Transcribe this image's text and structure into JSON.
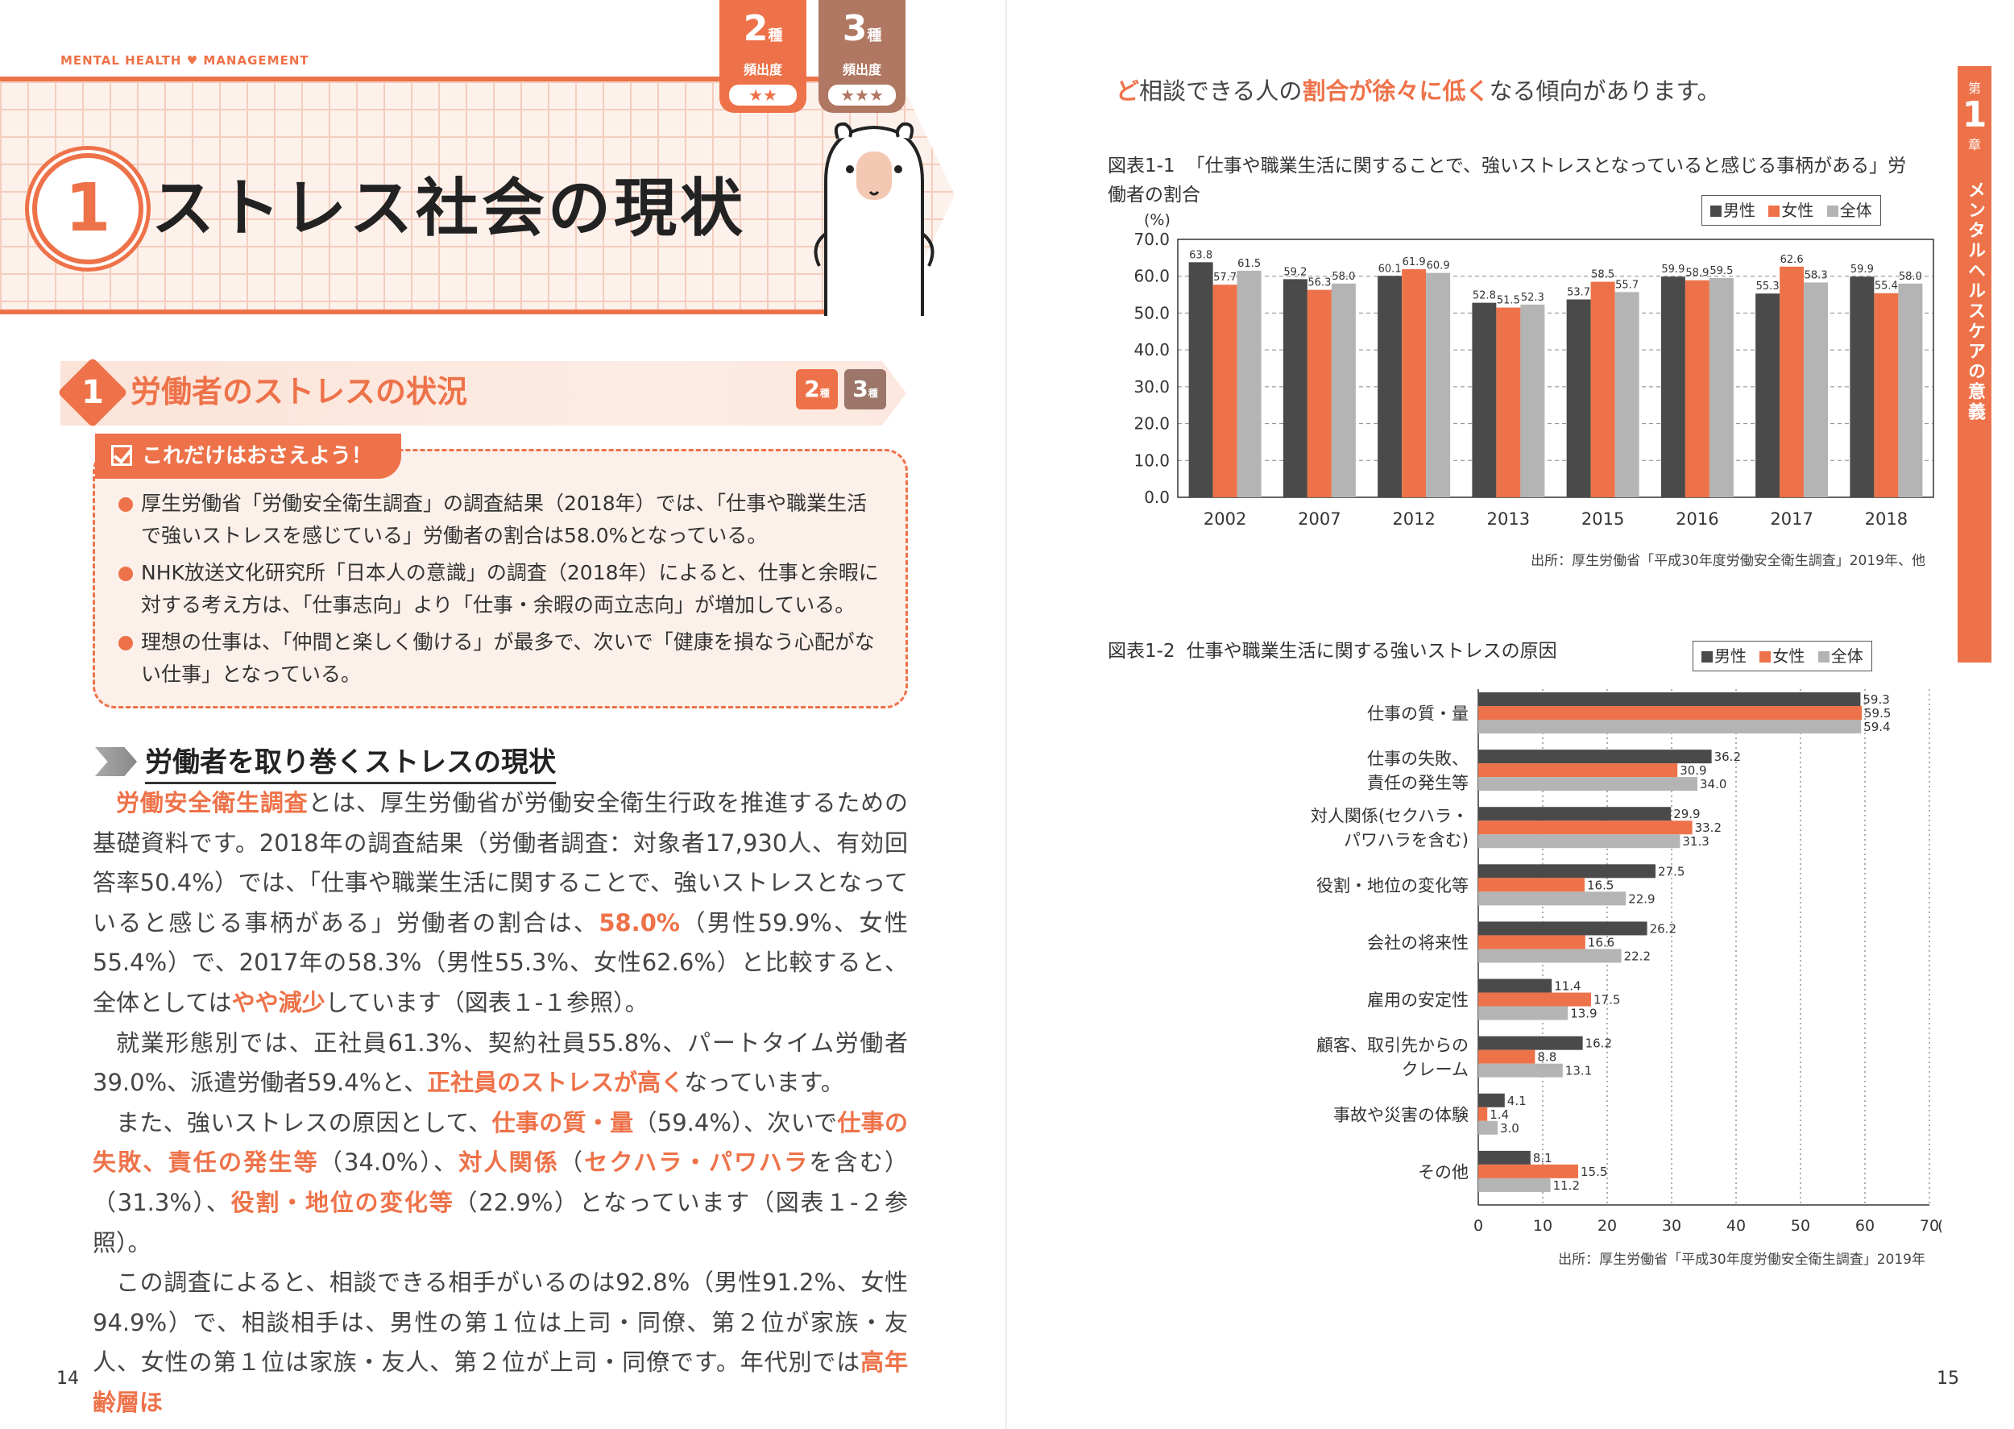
{
  "left": {
    "header_label_left": "MENTAL HEALTH",
    "header_label_heart": "♥",
    "header_label_right": "MANAGEMENT",
    "tabs": [
      {
        "num": "2",
        "suffix": "種",
        "freq": "頻出度",
        "stars": "★★"
      },
      {
        "num": "3",
        "suffix": "種",
        "freq": "頻出度",
        "stars": "★★★"
      }
    ],
    "chapter_num": "1",
    "chapter_title": "ストレス社会の現状",
    "section_num": "1",
    "section_title": "労働者のストレスの状況",
    "mini_tabs": [
      {
        "num": "2",
        "suffix": "種"
      },
      {
        "num": "3",
        "suffix": "種"
      }
    ],
    "key_title": "これだけはおさえよう！",
    "key_points": [
      "厚生労働省「労働安全衛生調査」の調査結果（2018年）では、「仕事や職業生活で強いストレスを感じている」労働者の割合は58.0%となっている。",
      "NHK放送文化研究所「日本人の意識」の調査（2018年）によると、仕事と余暇に対する考え方は、「仕事志向」より「仕事・余暇の両立志向」が増加している。",
      "理想の仕事は、「仲間と楽しく働ける」が最多で、次いで「健康を損なう心配がない仕事」となっている。"
    ],
    "subheading": "労働者を取り巻くストレスの現状",
    "para1": [
      {
        "t": "労働安全衛生調査",
        "hl": true
      },
      {
        "t": "とは、厚生労働省が労働安全衛生行政を推進するための基礎資料です。2018年の調査結果（労働者調査：対象者17,930人、有効回答率50.4%）では、「仕事や職業生活に関することで、強いストレスとなっていると感じる事柄がある」労働者の割合は、",
        "hl": false
      },
      {
        "t": "58.0%",
        "hl": true
      },
      {
        "t": "（男性59.9%、女性55.4%）で、2017年の58.3%（男性55.3%、女性62.6%）と比較すると、全体としては",
        "hl": false
      },
      {
        "t": "やや減少",
        "hl": true
      },
      {
        "t": "しています（図表１-１参照）。",
        "hl": false
      }
    ],
    "para2": [
      {
        "t": "就業形態別では、正社員61.3%、契約社員55.8%、パートタイム労働者39.0%、派遣労働者59.4%と、",
        "hl": false
      },
      {
        "t": "正社員のストレスが高く",
        "hl": true
      },
      {
        "t": "なっています。",
        "hl": false
      }
    ],
    "para3": [
      {
        "t": "また、強いストレスの原因として、",
        "hl": false
      },
      {
        "t": "仕事の質・量",
        "hl": true
      },
      {
        "t": "（59.4%）、次いで",
        "hl": false
      },
      {
        "t": "仕事の失敗、責任の発生等",
        "hl": true
      },
      {
        "t": "（34.0%）、",
        "hl": false
      },
      {
        "t": "対人関係",
        "hl": true
      },
      {
        "t": "（",
        "hl": false
      },
      {
        "t": "セクハラ・パワハラ",
        "hl": true
      },
      {
        "t": "を含む）（31.3%）、",
        "hl": false
      },
      {
        "t": "役割・地位の変化等",
        "hl": true
      },
      {
        "t": "（22.9%）となっています（図表１-２参照）。",
        "hl": false
      }
    ],
    "para4": [
      {
        "t": "この調査によると、相談できる相手がいるのは92.8%（男性91.2%、女性94.9%）で、相談相手は、男性の第１位は上司・同僚、第２位が家族・友人、女性の第１位は家族・友人、第２位が上司・同僚です。年代別では",
        "hl": false
      },
      {
        "t": "高年齢層ほ",
        "hl": true
      }
    ],
    "page_num": "14"
  },
  "right": {
    "cont_text": [
      {
        "t": "ど",
        "hl": true
      },
      {
        "t": "相談できる人の",
        "hl": false
      },
      {
        "t": "割合が徐々に低く",
        "hl": true
      },
      {
        "t": "なる傾向があります。",
        "hl": false
      }
    ],
    "chapter_index": {
      "dai": "第",
      "num": "1",
      "sho": "章",
      "title": "メンタルヘルスケアの意義"
    },
    "fig1_no": "図表1-1",
    "fig1_title": "「仕事や職業生活に関することで、強いストレスとなっていると感じる事柄がある」労働者の割合",
    "fig1_source": "出所：厚生労働省「平成30年度労働安全衛生調査」2019年、他",
    "fig2_no": "図表1-2",
    "fig2_title": "仕事や職業生活に関する強いストレスの原因",
    "fig2_source": "出所：厚生労働省「平成30年度労働安全衛生調査」2019年",
    "legend": [
      "男性",
      "女性",
      "全体"
    ],
    "page_num": "15"
  },
  "colors": {
    "accent": "#ee7249",
    "male": "#4a4a4a",
    "female": "#ee7249",
    "total": "#b4b4b4"
  },
  "chart_data": [
    {
      "type": "bar",
      "title": "「仕事や職業生活に関することで、強いストレスとなっていると感じる事柄がある」労働者の割合",
      "ylabel": "(%)",
      "ylim": [
        0,
        70
      ],
      "yticks": [
        "0.0",
        "10.0",
        "20.0",
        "30.0",
        "40.0",
        "50.0",
        "60.0",
        "70.0"
      ],
      "categories": [
        "2002",
        "2007",
        "2012",
        "2013",
        "2015",
        "2016",
        "2017",
        "2018"
      ],
      "series": [
        {
          "name": "男性",
          "values": [
            63.8,
            59.2,
            60.1,
            52.8,
            53.7,
            59.9,
            55.3,
            59.9
          ]
        },
        {
          "name": "女性",
          "values": [
            57.7,
            56.3,
            61.9,
            51.5,
            58.5,
            58.9,
            62.6,
            55.4
          ]
        },
        {
          "name": "全体",
          "values": [
            61.5,
            58.0,
            60.9,
            52.3,
            55.7,
            59.5,
            58.3,
            58.0
          ]
        }
      ],
      "legend": "top-right",
      "grid": "dashed horizontal"
    },
    {
      "type": "bar",
      "orientation": "horizontal",
      "title": "仕事や職業生活に関する強いストレスの原因",
      "xlabel": "(%)",
      "xlim": [
        0,
        70
      ],
      "xticks": [
        "0",
        "10",
        "20",
        "30",
        "40",
        "50",
        "60",
        "70"
      ],
      "categories": [
        [
          "仕事の質・量"
        ],
        [
          "仕事の失敗、",
          "責任の発生等"
        ],
        [
          "対人関係(セクハラ・",
          "パワハラを含む)"
        ],
        [
          "役割・地位の変化等"
        ],
        [
          "会社の将来性"
        ],
        [
          "雇用の安定性"
        ],
        [
          "顧客、取引先からの",
          "クレーム"
        ],
        [
          "事故や災害の体験"
        ],
        [
          "その他"
        ]
      ],
      "series": [
        {
          "name": "男性",
          "values": [
            59.3,
            36.2,
            29.9,
            27.5,
            26.2,
            11.4,
            16.2,
            4.1,
            8.1
          ]
        },
        {
          "name": "女性",
          "values": [
            59.5,
            30.9,
            33.2,
            16.5,
            16.6,
            17.5,
            8.8,
            1.4,
            15.5
          ]
        },
        {
          "name": "全体",
          "values": [
            59.4,
            34.0,
            31.3,
            22.9,
            22.2,
            13.9,
            13.1,
            3.0,
            11.2
          ]
        }
      ],
      "legend": "top-right",
      "grid": "dotted vertical"
    }
  ]
}
